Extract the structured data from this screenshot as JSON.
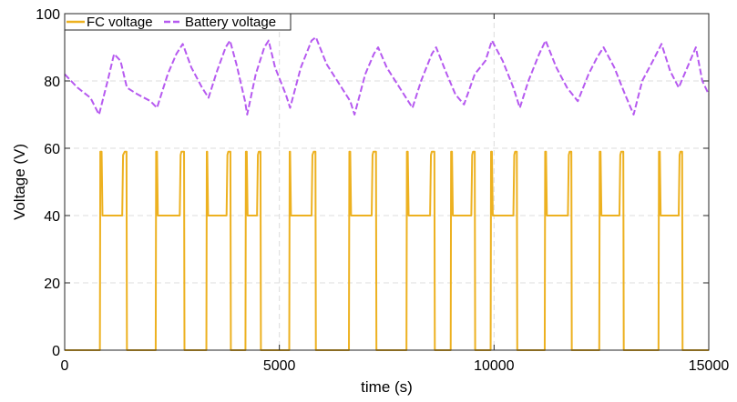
{
  "chart_data": {
    "type": "line",
    "xlabel": "time (s)",
    "ylabel": "Voltage (V)",
    "xlim": [
      0,
      15000
    ],
    "ylim": [
      0,
      100
    ],
    "x_ticks": [
      0,
      5000,
      10000,
      15000
    ],
    "y_ticks": [
      0,
      20,
      40,
      60,
      80,
      100
    ],
    "x_tick_labels": [
      "0",
      "5000",
      "10000",
      "15000"
    ],
    "y_tick_labels": [
      "0",
      "20",
      "40",
      "60",
      "80",
      "100"
    ],
    "grid": true,
    "legend_position": "top-left",
    "series": [
      {
        "name": "FC voltage",
        "color": "#EDB120",
        "style": "solid",
        "points": [
          [
            0,
            0
          ],
          [
            820,
            0
          ],
          [
            830,
            59
          ],
          [
            860,
            59
          ],
          [
            880,
            40
          ],
          [
            1340,
            40
          ],
          [
            1360,
            58
          ],
          [
            1400,
            59
          ],
          [
            1440,
            59
          ],
          [
            1450,
            0
          ],
          [
            2120,
            0
          ],
          [
            2130,
            59
          ],
          [
            2150,
            59
          ],
          [
            2170,
            40
          ],
          [
            2680,
            40
          ],
          [
            2700,
            58
          ],
          [
            2720,
            59
          ],
          [
            2780,
            59
          ],
          [
            2790,
            0
          ],
          [
            3300,
            0
          ],
          [
            3310,
            59
          ],
          [
            3320,
            59
          ],
          [
            3340,
            40
          ],
          [
            3770,
            40
          ],
          [
            3790,
            58
          ],
          [
            3810,
            59
          ],
          [
            3860,
            59
          ],
          [
            3870,
            0
          ],
          [
            4210,
            0
          ],
          [
            4220,
            59
          ],
          [
            4240,
            59
          ],
          [
            4260,
            40
          ],
          [
            4480,
            40
          ],
          [
            4500,
            58
          ],
          [
            4520,
            59
          ],
          [
            4560,
            59
          ],
          [
            4570,
            0
          ],
          [
            5230,
            0
          ],
          [
            5240,
            59
          ],
          [
            5250,
            59
          ],
          [
            5270,
            40
          ],
          [
            5750,
            40
          ],
          [
            5770,
            58
          ],
          [
            5800,
            59
          ],
          [
            5840,
            59
          ],
          [
            5850,
            0
          ],
          [
            6620,
            0
          ],
          [
            6630,
            59
          ],
          [
            6650,
            59
          ],
          [
            6670,
            40
          ],
          [
            7150,
            40
          ],
          [
            7170,
            58
          ],
          [
            7190,
            59
          ],
          [
            7250,
            59
          ],
          [
            7260,
            0
          ],
          [
            7960,
            0
          ],
          [
            7970,
            59
          ],
          [
            7990,
            59
          ],
          [
            8010,
            40
          ],
          [
            8510,
            40
          ],
          [
            8530,
            58
          ],
          [
            8550,
            59
          ],
          [
            8610,
            59
          ],
          [
            8620,
            0
          ],
          [
            8990,
            0
          ],
          [
            9000,
            59
          ],
          [
            9020,
            59
          ],
          [
            9040,
            40
          ],
          [
            9470,
            40
          ],
          [
            9490,
            58
          ],
          [
            9510,
            59
          ],
          [
            9550,
            59
          ],
          [
            9560,
            0
          ],
          [
            9920,
            0
          ],
          [
            9930,
            59
          ],
          [
            9950,
            59
          ],
          [
            9970,
            40
          ],
          [
            10450,
            40
          ],
          [
            10470,
            58
          ],
          [
            10490,
            59
          ],
          [
            10530,
            59
          ],
          [
            10540,
            0
          ],
          [
            11180,
            0
          ],
          [
            11190,
            59
          ],
          [
            11210,
            59
          ],
          [
            11230,
            40
          ],
          [
            11720,
            40
          ],
          [
            11740,
            58
          ],
          [
            11760,
            59
          ],
          [
            11800,
            59
          ],
          [
            11810,
            0
          ],
          [
            12450,
            0
          ],
          [
            12460,
            59
          ],
          [
            12480,
            59
          ],
          [
            12500,
            40
          ],
          [
            12920,
            40
          ],
          [
            12940,
            58
          ],
          [
            12960,
            59
          ],
          [
            13010,
            59
          ],
          [
            13020,
            0
          ],
          [
            13830,
            0
          ],
          [
            13840,
            59
          ],
          [
            13860,
            59
          ],
          [
            13880,
            40
          ],
          [
            14300,
            40
          ],
          [
            14320,
            58
          ],
          [
            14340,
            59
          ],
          [
            14380,
            59
          ],
          [
            14390,
            0
          ],
          [
            15000,
            0
          ]
        ]
      },
      {
        "name": "Battery voltage",
        "color": "#B65AF0",
        "style": "dashed",
        "points": [
          [
            0,
            82
          ],
          [
            300,
            78
          ],
          [
            600,
            75
          ],
          [
            800,
            70
          ],
          [
            1000,
            80
          ],
          [
            1150,
            88
          ],
          [
            1300,
            86
          ],
          [
            1450,
            78
          ],
          [
            1700,
            76
          ],
          [
            2000,
            74
          ],
          [
            2150,
            72
          ],
          [
            2400,
            82
          ],
          [
            2600,
            88
          ],
          [
            2750,
            91
          ],
          [
            2950,
            84
          ],
          [
            3200,
            78
          ],
          [
            3350,
            75
          ],
          [
            3550,
            83
          ],
          [
            3750,
            90
          ],
          [
            3850,
            92
          ],
          [
            4000,
            85
          ],
          [
            4200,
            74
          ],
          [
            4250,
            70
          ],
          [
            4450,
            82
          ],
          [
            4650,
            90
          ],
          [
            4750,
            92
          ],
          [
            4900,
            84
          ],
          [
            5150,
            76
          ],
          [
            5250,
            72
          ],
          [
            5500,
            84
          ],
          [
            5750,
            92
          ],
          [
            5850,
            93
          ],
          [
            6100,
            85
          ],
          [
            6450,
            78
          ],
          [
            6650,
            74
          ],
          [
            6750,
            70
          ],
          [
            7000,
            82
          ],
          [
            7200,
            88
          ],
          [
            7300,
            90
          ],
          [
            7500,
            84
          ],
          [
            7800,
            78
          ],
          [
            8000,
            74
          ],
          [
            8100,
            72
          ],
          [
            8300,
            80
          ],
          [
            8550,
            88
          ],
          [
            8650,
            90
          ],
          [
            8900,
            82
          ],
          [
            9100,
            76
          ],
          [
            9300,
            73
          ],
          [
            9550,
            82
          ],
          [
            9800,
            86
          ],
          [
            9950,
            92
          ],
          [
            10200,
            86
          ],
          [
            10450,
            78
          ],
          [
            10600,
            72
          ],
          [
            10800,
            80
          ],
          [
            11050,
            88
          ],
          [
            11200,
            92
          ],
          [
            11450,
            84
          ],
          [
            11700,
            78
          ],
          [
            11950,
            74
          ],
          [
            12200,
            82
          ],
          [
            12400,
            87
          ],
          [
            12550,
            90
          ],
          [
            12800,
            84
          ],
          [
            13050,
            76
          ],
          [
            13250,
            70
          ],
          [
            13450,
            80
          ],
          [
            13700,
            86
          ],
          [
            13900,
            91
          ],
          [
            14100,
            83
          ],
          [
            14300,
            78
          ],
          [
            14500,
            84
          ],
          [
            14700,
            90
          ],
          [
            14850,
            80
          ],
          [
            15000,
            76
          ]
        ]
      }
    ]
  }
}
